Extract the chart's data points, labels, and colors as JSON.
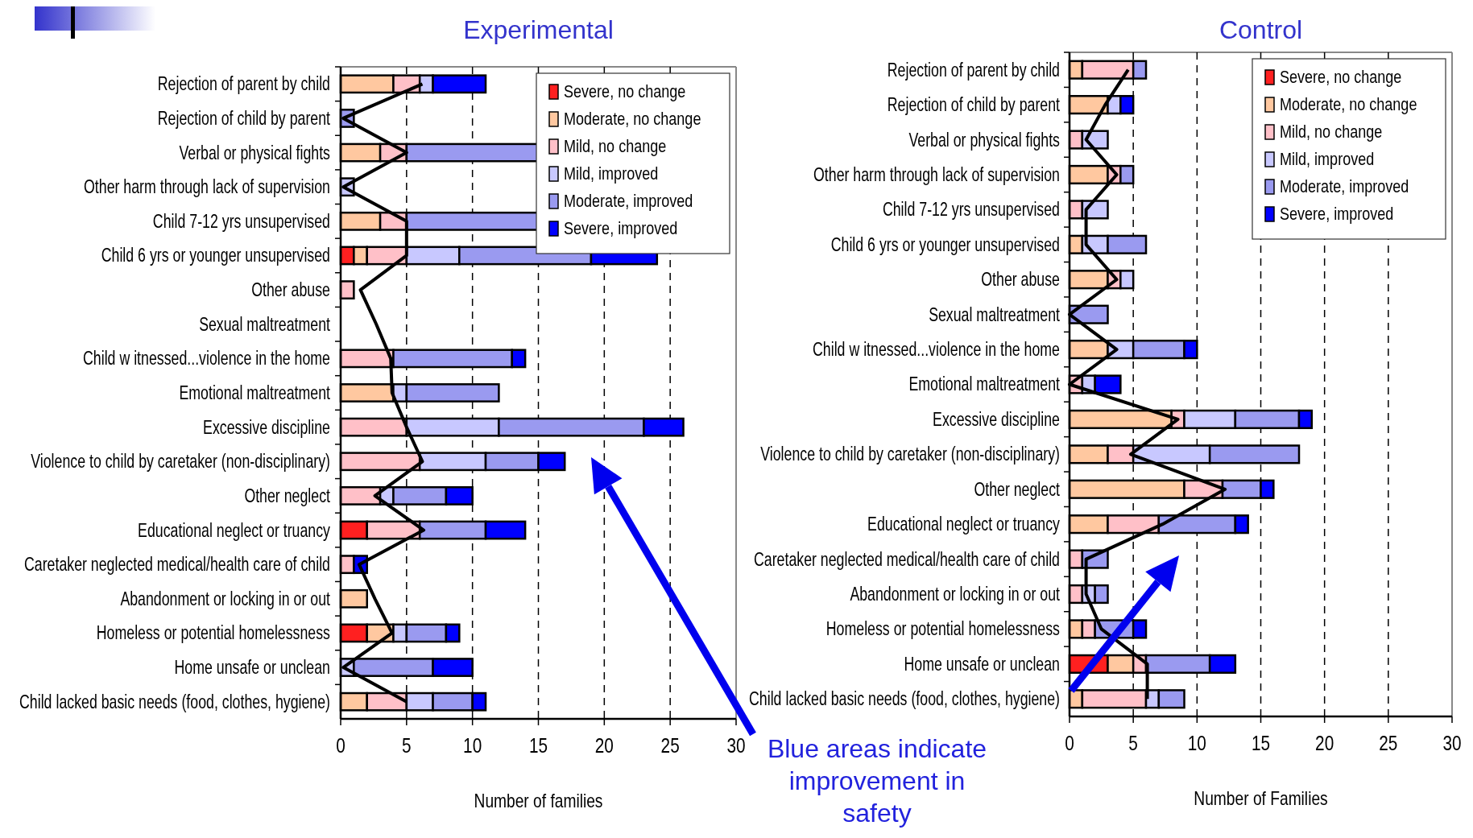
{
  "chart_data": [
    {
      "type": "bar",
      "orientation": "horizontal",
      "stacked": true,
      "title": "Experimental",
      "xlabel": "Number of families",
      "xlim": [
        0,
        30
      ],
      "xticks": [
        0,
        5,
        10,
        15,
        20,
        25,
        30
      ],
      "grid": "x",
      "legend": "top right",
      "categories": [
        "Rejection of parent by child",
        "Rejection of child by parent",
        "Verbal or physical fights",
        "Other harm through lack of supervision",
        "Child 7-12 yrs unsupervised",
        "Child 6 yrs or younger unsupervised",
        "Other abuse",
        "Sexual maltreatment",
        "Child w itnessed...violence in the home",
        "Emotional maltreatment",
        "Excessive discipline",
        "Violence to child by caretaker (non-disciplinary)",
        "Other neglect",
        "Educational neglect or truancy",
        "Caretaker neglected medical/health care of child",
        "Abandonment or locking in or out",
        "Homeless or potential homelessness",
        "Home unsafe or unclean",
        "Child lacked basic needs (food, clothes, hygiene)"
      ],
      "series": [
        {
          "name": "Severe, no change",
          "color": "#ff2020",
          "values": [
            0,
            0,
            0,
            0,
            0,
            1,
            0,
            0,
            0,
            0,
            0,
            0,
            0,
            2,
            0,
            0,
            2,
            0,
            0
          ]
        },
        {
          "name": "Moderate, no change",
          "color": "#ffc8a0",
          "values": [
            4,
            0,
            3,
            0,
            3,
            1,
            0,
            0,
            0,
            4,
            0,
            0,
            0,
            0,
            0,
            2,
            2,
            0,
            2
          ]
        },
        {
          "name": "Mild, no change",
          "color": "#ffc0c8",
          "values": [
            2,
            0,
            2,
            0,
            2,
            3,
            1,
            0,
            4,
            0,
            5,
            6,
            3,
            4,
            1,
            0,
            0,
            0,
            3
          ]
        },
        {
          "name": "Mild, improved",
          "color": "#c8c8ff",
          "values": [
            1,
            0,
            0,
            1,
            0,
            4,
            0,
            0,
            0,
            1,
            7,
            5,
            1,
            0,
            0,
            0,
            1,
            1,
            2
          ]
        },
        {
          "name": "Moderate, improved",
          "color": "#9a9af0",
          "values": [
            0,
            1,
            10,
            0,
            10,
            10,
            0,
            0,
            9,
            7,
            11,
            4,
            4,
            5,
            0,
            0,
            3,
            6,
            3
          ]
        },
        {
          "name": "Severe, improved",
          "color": "#0000ff",
          "values": [
            4,
            0,
            0,
            0,
            0,
            5,
            0,
            0,
            1,
            0,
            3,
            2,
            2,
            3,
            1,
            0,
            1,
            3,
            1
          ]
        },
        {
          "type": "line",
          "color": "#000000",
          "values": [
            6.2,
            0.2,
            5,
            0.2,
            5,
            5,
            1.5,
            2.7,
            3.8,
            3.9,
            5,
            6.2,
            2.6,
            6.3,
            1.4,
            2.6,
            3.9,
            0.2,
            5
          ]
        }
      ],
      "annotations": [
        "Blue areas indicate improvement in safety"
      ]
    },
    {
      "type": "bar",
      "orientation": "horizontal",
      "stacked": true,
      "title": "Control",
      "xlabel": "Number of Families",
      "xlim": [
        0,
        30
      ],
      "xticks": [
        0,
        5,
        10,
        15,
        20,
        25,
        30
      ],
      "grid": "x",
      "legend": "top right",
      "categories": [
        "Rejection of parent by child",
        "Rejection of child by parent",
        "Verbal or physical fights",
        "Other harm through lack of supervision",
        "Child 7-12 yrs unsupervised",
        "Child 6 yrs or younger unsupervised",
        "Other abuse",
        "Sexual maltreatment",
        "Child w itnessed...violence in the home",
        "Emotional maltreatment",
        "Excessive discipline",
        "Violence to child by caretaker (non-disciplinary)",
        "Other neglect",
        "Educational neglect or truancy",
        "Caretaker neglected medical/health care of child",
        "Abandonment or locking in or out",
        "Homeless or potential homelessness",
        "Home unsafe or unclean",
        "Child lacked basic needs (food, clothes, hygiene)"
      ],
      "series": [
        {
          "name": "Severe, no change",
          "color": "#ff2020",
          "values": [
            0,
            0,
            0,
            0,
            0,
            0,
            0,
            0,
            0,
            0,
            0,
            0,
            0,
            0,
            0,
            0,
            0,
            3,
            0
          ]
        },
        {
          "name": "Moderate, no change",
          "color": "#ffc8a0",
          "values": [
            1,
            3,
            0,
            3,
            0,
            1,
            3,
            0,
            3,
            0,
            8,
            3,
            9,
            3,
            0,
            0,
            1,
            2,
            1
          ]
        },
        {
          "name": "Mild, no change",
          "color": "#ffc0c8",
          "values": [
            4,
            0,
            1,
            1,
            1,
            0,
            1,
            0,
            0,
            1,
            1,
            2,
            3,
            4,
            1,
            1,
            1,
            1,
            5
          ]
        },
        {
          "name": "Mild, improved",
          "color": "#c8c8ff",
          "values": [
            0,
            1,
            2,
            0,
            2,
            2,
            1,
            0,
            2,
            1,
            4,
            6,
            0,
            0,
            0,
            1,
            0,
            0,
            1
          ]
        },
        {
          "name": "Moderate, improved",
          "color": "#9a9af0",
          "values": [
            1,
            0,
            0,
            1,
            0,
            3,
            0,
            3,
            4,
            0,
            5,
            7,
            3,
            6,
            2,
            1,
            3,
            5,
            2
          ]
        },
        {
          "name": "Severe, improved",
          "color": "#0000ff",
          "values": [
            0,
            1,
            0,
            0,
            0,
            0,
            0,
            0,
            1,
            2,
            1,
            0,
            1,
            1,
            0,
            0,
            1,
            2,
            0
          ]
        },
        {
          "type": "line",
          "color": "#000000",
          "values": [
            4.6,
            2.8,
            1.3,
            3.7,
            1.3,
            1.3,
            3.7,
            0,
            3.7,
            0,
            8.5,
            4.8,
            12.2,
            7.3,
            1.3,
            1.3,
            2.5,
            6.1,
            6.1
          ]
        }
      ]
    }
  ]
}
